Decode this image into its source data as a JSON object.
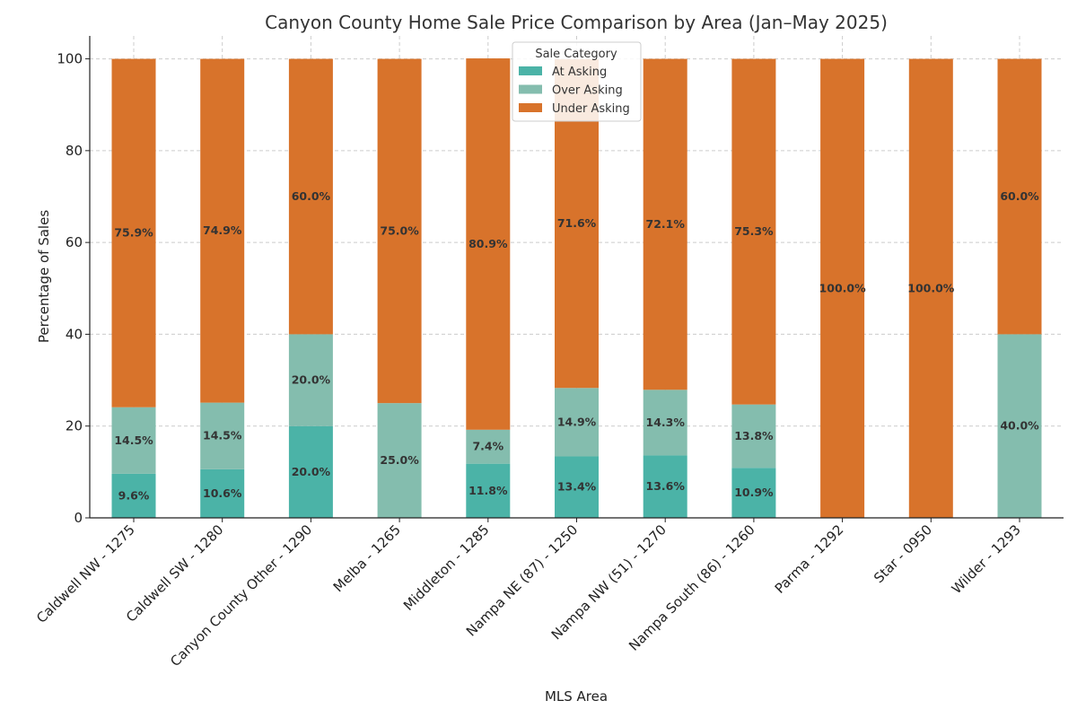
{
  "chart_data": {
    "type": "bar",
    "stacked": true,
    "title": "Canyon County Home Sale Price Comparison by Area (Jan–May 2025)",
    "xlabel": "MLS Area",
    "ylabel": "Percentage of Sales",
    "ylim": [
      0,
      105
    ],
    "yticks": [
      0,
      20,
      40,
      60,
      80,
      100
    ],
    "grid": true,
    "legend": {
      "title": "Sale Category",
      "placement": "top-center"
    },
    "categories": [
      "Caldwell NW - 1275",
      "Caldwell SW - 1280",
      "Canyon County Other - 1290",
      "Melba - 1265",
      "Middleton - 1285",
      "Nampa NE (87) - 1250",
      "Nampa NW (51) - 1270",
      "Nampa South (86) - 1260",
      "Parma - 1292",
      "Star - 0950",
      "Wilder - 1293"
    ],
    "series": [
      {
        "name": "At Asking",
        "color": "#4BB3A7",
        "values": [
          9.6,
          10.6,
          20.0,
          0,
          11.8,
          13.4,
          13.6,
          10.9,
          0,
          0,
          0
        ]
      },
      {
        "name": "Over Asking",
        "color": "#84BDAE",
        "values": [
          14.5,
          14.5,
          20.0,
          25.0,
          7.4,
          14.9,
          14.3,
          13.8,
          0,
          0,
          40.0
        ]
      },
      {
        "name": "Under Asking",
        "color": "#D8732B",
        "values": [
          75.9,
          74.9,
          60.0,
          75.0,
          80.9,
          71.6,
          72.1,
          75.3,
          100.0,
          100.0,
          60.0
        ]
      }
    ]
  }
}
